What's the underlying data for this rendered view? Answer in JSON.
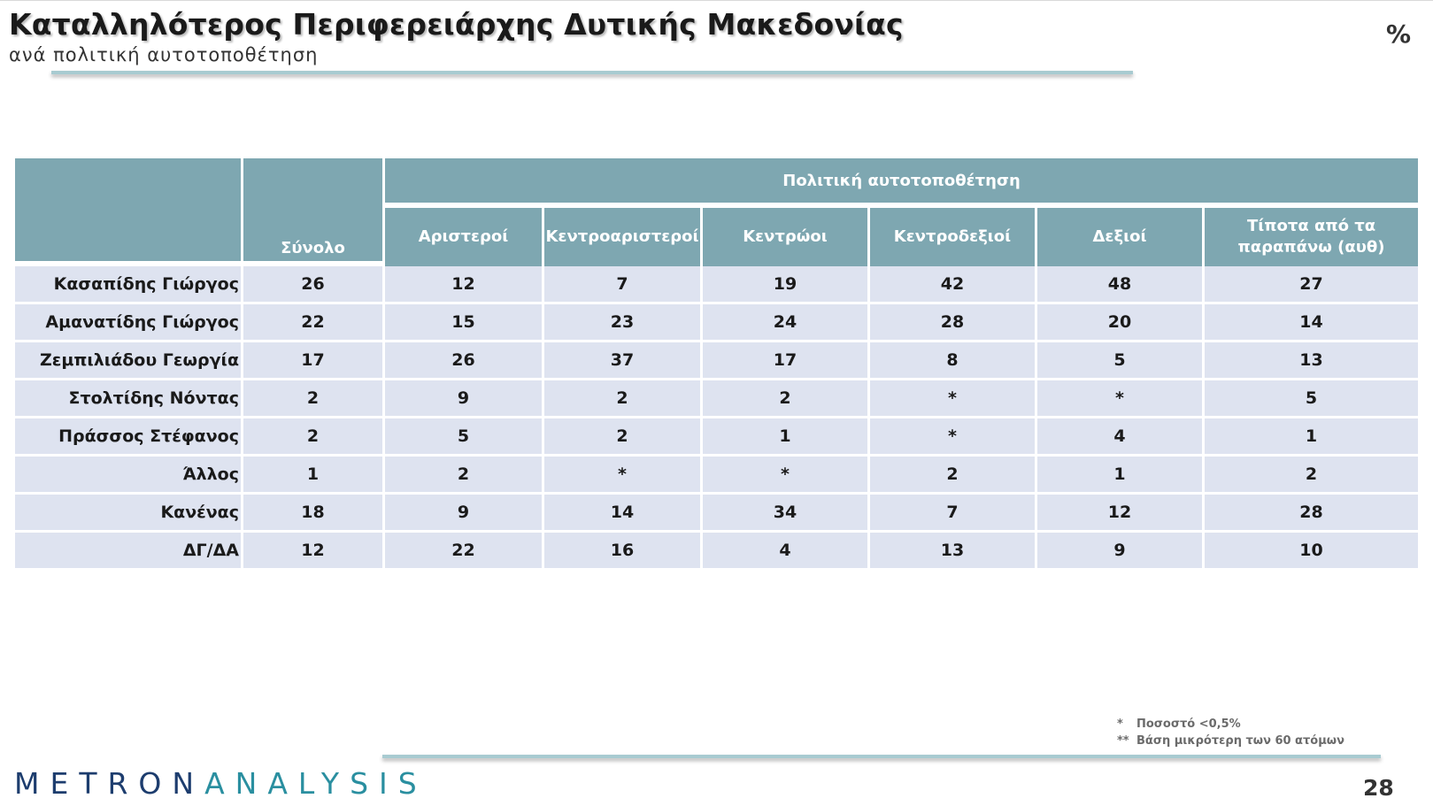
{
  "slide": {
    "title": "Καταλληλότερος Περιφερειάρχης Δυτικής Μακεδονίας",
    "subtitle": "ανά πολιτική αυτοτοποθέτηση",
    "unit": "%",
    "page_number": "28"
  },
  "table": {
    "total_header": "Σύνολο",
    "group_header": "Πολιτική αυτοτοποθέτηση",
    "columns": [
      "Αριστεροί",
      "Κεντροαριστεροί",
      "Κεντρώοι",
      "Κεντροδεξιοί",
      "Δεξιοί",
      "Τίποτα από τα παραπάνω (αυθ)"
    ],
    "rows": [
      {
        "name": "Κασαπίδης Γιώργος",
        "values": [
          "26",
          "12",
          "7",
          "19",
          "42",
          "48",
          "27"
        ]
      },
      {
        "name": "Αμανατίδης Γιώργος",
        "values": [
          "22",
          "15",
          "23",
          "24",
          "28",
          "20",
          "14"
        ]
      },
      {
        "name": "Ζεμπιλιάδου Γεωργία",
        "values": [
          "17",
          "26",
          "37",
          "17",
          "8",
          "5",
          "13"
        ]
      },
      {
        "name": "Στολτίδης Νόντας",
        "values": [
          "2",
          "9",
          "2",
          "2",
          "*",
          "*",
          "5"
        ]
      },
      {
        "name": "Πράσσος Στέφανος",
        "values": [
          "2",
          "5",
          "2",
          "1",
          "*",
          "4",
          "1"
        ]
      },
      {
        "name": "Άλλος",
        "values": [
          "1",
          "2",
          "*",
          "*",
          "2",
          "1",
          "2"
        ]
      },
      {
        "name": "Κανένας",
        "values": [
          "18",
          "9",
          "14",
          "34",
          "7",
          "12",
          "28"
        ]
      },
      {
        "name": "ΔΓ/ΔΑ",
        "values": [
          "12",
          "22",
          "16",
          "4",
          "13",
          "9",
          "10"
        ]
      }
    ]
  },
  "footnotes": [
    {
      "mark": "*",
      "text": "Ποσοστό <0,5%"
    },
    {
      "mark": "**",
      "text": "Βάση μικρότερη των 60 ατόμων"
    }
  ],
  "logo": {
    "part1": "METRON",
    "part2": "ANALYSIS"
  },
  "colors": {
    "header": "#7ea7b1",
    "row": "#dee3f0",
    "accent_line": "#a8cbd1",
    "logo": "#1d3d6e"
  }
}
